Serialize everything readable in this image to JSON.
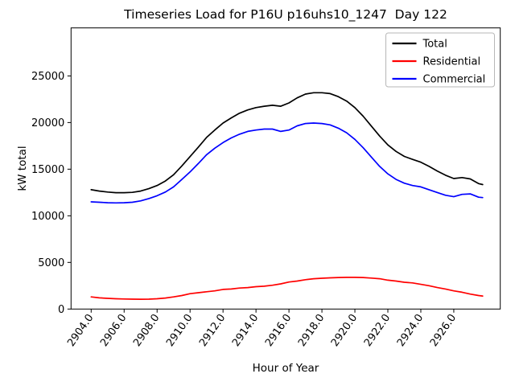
{
  "window": {
    "background": "#ffffff"
  },
  "chart_data": {
    "type": "line",
    "title": "Timeseries Load for P16U p16uhs10_1247  Day 122",
    "xlabel": "Hour of Year",
    "ylabel": "kW total",
    "grid": false,
    "xlim": [
      2902.78,
      2928.82
    ],
    "ylim": [
      0,
      30150
    ],
    "xticks": {
      "values": [
        2904,
        2906,
        2908,
        2910,
        2912,
        2914,
        2916,
        2918,
        2920,
        2922,
        2924,
        2926
      ],
      "labels": [
        "2904.0",
        "2906.0",
        "2908.0",
        "2910.0",
        "2912.0",
        "2914.0",
        "2916.0",
        "2918.0",
        "2920.0",
        "2922.0",
        "2924.0",
        "2926.0"
      ]
    },
    "yticks": {
      "values": [
        0,
        5000,
        10000,
        15000,
        20000,
        25000
      ],
      "labels": [
        "0",
        "5000",
        "10000",
        "15000",
        "20000",
        "25000"
      ]
    },
    "legend": {
      "position": "upper right",
      "entries": [
        {
          "label": "Total",
          "color": "#000000"
        },
        {
          "label": "Residential",
          "color": "#ff0000"
        },
        {
          "label": "Commercial",
          "color": "#0000ff"
        }
      ]
    },
    "x": [
      2904.0,
      2904.5,
      2905.0,
      2905.5,
      2906.0,
      2906.5,
      2907.0,
      2907.5,
      2908.0,
      2908.5,
      2909.0,
      2909.5,
      2910.0,
      2910.5,
      2911.0,
      2911.5,
      2912.0,
      2912.5,
      2913.0,
      2913.5,
      2914.0,
      2914.5,
      2915.0,
      2915.5,
      2916.0,
      2916.5,
      2917.0,
      2917.5,
      2918.0,
      2918.5,
      2919.0,
      2919.5,
      2920.0,
      2920.5,
      2921.0,
      2921.5,
      2922.0,
      2922.5,
      2923.0,
      2923.5,
      2924.0,
      2924.5,
      2925.0,
      2925.5,
      2926.0,
      2926.5,
      2927.0,
      2927.5,
      2927.75
    ],
    "series": [
      {
        "name": "Total",
        "color": "#000000",
        "values": [
          12800,
          12650,
          12550,
          12480,
          12480,
          12510,
          12650,
          12910,
          13250,
          13730,
          14400,
          15350,
          16350,
          17350,
          18400,
          19200,
          19950,
          20500,
          21000,
          21350,
          21600,
          21750,
          21850,
          21750,
          22100,
          22650,
          23050,
          23200,
          23200,
          23100,
          22780,
          22300,
          21600,
          20680,
          19620,
          18550,
          17600,
          16900,
          16370,
          16050,
          15750,
          15300,
          14800,
          14350,
          14000,
          14100,
          13950,
          13450,
          13350
        ]
      },
      {
        "name": "Residential",
        "color": "#ff0000",
        "values": [
          1300,
          1200,
          1150,
          1100,
          1080,
          1060,
          1050,
          1060,
          1100,
          1180,
          1300,
          1450,
          1650,
          1750,
          1850,
          1950,
          2100,
          2150,
          2250,
          2300,
          2400,
          2450,
          2550,
          2700,
          2900,
          3000,
          3150,
          3250,
          3300,
          3350,
          3380,
          3400,
          3400,
          3380,
          3320,
          3250,
          3100,
          3000,
          2870,
          2800,
          2650,
          2500,
          2300,
          2150,
          1950,
          1800,
          1600,
          1450,
          1400
        ]
      },
      {
        "name": "Commercial",
        "color": "#0000ff",
        "values": [
          11500,
          11450,
          11400,
          11380,
          11400,
          11450,
          11600,
          11850,
          12150,
          12550,
          13100,
          13900,
          14700,
          15600,
          16550,
          17250,
          17850,
          18350,
          18750,
          19050,
          19200,
          19300,
          19300,
          19050,
          19200,
          19650,
          19900,
          19950,
          19900,
          19750,
          19400,
          18900,
          18200,
          17300,
          16300,
          15300,
          14500,
          13900,
          13500,
          13250,
          13100,
          12800,
          12500,
          12200,
          12050,
          12300,
          12350,
          12000,
          11950
        ]
      }
    ]
  }
}
